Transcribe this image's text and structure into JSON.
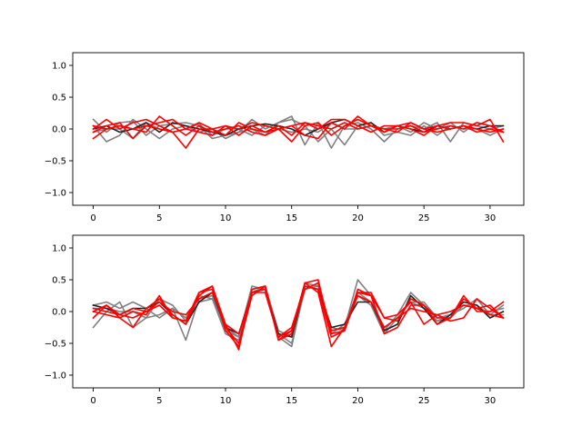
{
  "chart_data": [
    {
      "type": "line",
      "x": [
        0,
        1,
        2,
        3,
        4,
        5,
        6,
        7,
        8,
        9,
        10,
        11,
        12,
        13,
        14,
        15,
        16,
        17,
        18,
        19,
        20,
        21,
        22,
        23,
        24,
        25,
        26,
        27,
        28,
        29,
        30,
        31
      ],
      "xlim": [
        -1.55,
        32.55
      ],
      "ylim": [
        -1.2,
        1.2
      ],
      "xticks": [
        0,
        5,
        10,
        15,
        20,
        25,
        30
      ],
      "yticks": [
        -1.0,
        -0.5,
        0.0,
        0.5,
        1.0
      ],
      "ytick_labels": [
        "−1.0",
        "−0.5",
        "0.0",
        "0.5",
        "1.0"
      ],
      "grid": false,
      "series": [
        {
          "color": "#808080",
          "values": [
            0.15,
            -0.05,
            0.1,
            0.12,
            -0.1,
            0.05,
            0.08,
            0.1,
            0.05,
            -0.15,
            -0.1,
            -0.05,
            0.15,
            0.0,
            0.1,
            0.2,
            -0.25,
            0.1,
            -0.3,
            0.05,
            0.1,
            0.0,
            -0.2,
            0.0,
            0.05,
            0.0,
            0.1,
            -0.2,
            0.1,
            0.05,
            0.0,
            0.05
          ]
        },
        {
          "color": "#808080",
          "values": [
            0.05,
            -0.2,
            -0.1,
            0.15,
            0.0,
            -0.15,
            0.0,
            0.05,
            -0.05,
            0.0,
            -0.15,
            -0.05,
            0.0,
            -0.1,
            0.1,
            0.15,
            0.05,
            -0.2,
            0.0,
            -0.25,
            0.05,
            0.1,
            -0.1,
            -0.05,
            -0.1,
            0.05,
            -0.1,
            0.05,
            0.0,
            0.0,
            -0.1,
            0.0
          ]
        },
        {
          "color": "#808080",
          "values": [
            -0.05,
            0.0,
            0.0,
            -0.15,
            0.1,
            0.0,
            -0.05,
            0.0,
            0.08,
            -0.1,
            0.0,
            0.0,
            -0.1,
            0.05,
            0.0,
            -0.05,
            0.0,
            -0.05,
            0.1,
            0.0,
            0.0,
            0.05,
            0.0,
            0.05,
            -0.05,
            0.1,
            0.0,
            0.1,
            -0.05,
            0.1,
            0.05,
            -0.05
          ]
        },
        {
          "color": "#222222",
          "values": [
            0.0,
            0.05,
            -0.05,
            0.0,
            0.1,
            -0.05,
            0.1,
            0.05,
            0.0,
            -0.05,
            -0.1,
            0.0,
            0.05,
            0.08,
            0.05,
            0.0,
            -0.1,
            0.0,
            0.1,
            0.15,
            0.05,
            0.1,
            -0.05,
            0.05,
            0.0,
            -0.05,
            0.05,
            0.0,
            0.05,
            0.0,
            0.05,
            0.05
          ]
        },
        {
          "color": "#ff0000",
          "values": [
            -0.15,
            0.0,
            0.05,
            0.0,
            -0.05,
            0.2,
            0.05,
            -0.1,
            0.05,
            -0.05,
            0.0,
            0.05,
            -0.05,
            -0.1,
            0.0,
            -0.2,
            0.05,
            0.1,
            -0.1,
            0.05,
            0.15,
            0.05,
            0.0,
            0.0,
            0.05,
            -0.05,
            0.0,
            0.05,
            0.0,
            0.1,
            0.05,
            -0.05
          ]
        },
        {
          "color": "#ff0000",
          "values": [
            0.0,
            0.15,
            0.0,
            0.1,
            0.15,
            0.05,
            -0.05,
            0.0,
            0.1,
            0.0,
            0.05,
            0.0,
            0.1,
            0.05,
            0.0,
            0.05,
            0.1,
            0.0,
            0.15,
            0.15,
            0.05,
            -0.05,
            0.05,
            0.05,
            0.1,
            0.0,
            0.05,
            0.1,
            0.1,
            0.05,
            0.15,
            -0.2
          ]
        },
        {
          "color": "#ff0000",
          "values": [
            0.05,
            0.0,
            0.05,
            0.0,
            0.05,
            0.0,
            -0.05,
            -0.3,
            0.0,
            0.0,
            -0.1,
            0.1,
            0.0,
            -0.05,
            0.05,
            -0.1,
            0.1,
            0.05,
            0.0,
            0.1,
            0.0,
            0.05,
            0.0,
            -0.05,
            0.1,
            0.0,
            -0.05,
            0.0,
            0.05,
            -0.05,
            0.0,
            -0.05
          ]
        },
        {
          "color": "#ff0000",
          "values": [
            -0.05,
            0.05,
            0.1,
            -0.15,
            0.05,
            0.1,
            0.15,
            0.0,
            -0.05,
            -0.1,
            0.05,
            -0.1,
            0.05,
            -0.05,
            0.0,
            0.05,
            -0.1,
            -0.15,
            0.1,
            0.0,
            0.2,
            0.05,
            -0.05,
            0.05,
            0.0,
            -0.1,
            0.05,
            0.0,
            0.05,
            0.0,
            -0.05,
            0.0
          ]
        }
      ]
    },
    {
      "type": "line",
      "x": [
        0,
        1,
        2,
        3,
        4,
        5,
        6,
        7,
        8,
        9,
        10,
        11,
        12,
        13,
        14,
        15,
        16,
        17,
        18,
        19,
        20,
        21,
        22,
        23,
        24,
        25,
        26,
        27,
        28,
        29,
        30,
        31
      ],
      "xlim": [
        -1.55,
        32.55
      ],
      "ylim": [
        -1.2,
        1.2
      ],
      "xticks": [
        0,
        5,
        10,
        15,
        20,
        25,
        30
      ],
      "yticks": [
        -1.0,
        -0.5,
        0.0,
        0.5,
        1.0
      ],
      "ytick_labels": [
        "−1.0",
        "−0.5",
        "0.0",
        "0.5",
        "1.0"
      ],
      "grid": false,
      "series": [
        {
          "color": "#808080",
          "values": [
            0.1,
            0.15,
            0.05,
            0.15,
            0.05,
            -0.1,
            0.05,
            -0.45,
            0.2,
            0.25,
            -0.25,
            -0.4,
            0.4,
            0.35,
            -0.35,
            -0.5,
            0.35,
            0.4,
            -0.3,
            -0.25,
            0.5,
            0.25,
            -0.3,
            -0.05,
            0.3,
            0.1,
            -0.15,
            -0.1,
            0.1,
            0.1,
            -0.05,
            -0.05
          ]
        },
        {
          "color": "#808080",
          "values": [
            -0.25,
            0.0,
            0.15,
            -0.25,
            -0.1,
            0.2,
            0.1,
            -0.15,
            0.15,
            0.2,
            -0.35,
            -0.45,
            0.3,
            0.4,
            -0.4,
            -0.55,
            0.4,
            0.35,
            -0.35,
            -0.2,
            0.3,
            0.15,
            -0.25,
            -0.1,
            0.15,
            0.05,
            -0.15,
            -0.05,
            0.05,
            0.2,
            -0.05,
            0.1
          ]
        },
        {
          "color": "#808080",
          "values": [
            0.05,
            0.05,
            0.0,
            0.0,
            -0.1,
            -0.05,
            0.05,
            -0.1,
            0.25,
            0.2,
            -0.3,
            -0.4,
            0.35,
            0.4,
            -0.3,
            -0.4,
            0.45,
            0.4,
            -0.25,
            -0.3,
            0.25,
            0.1,
            -0.35,
            -0.1,
            0.15,
            0.15,
            -0.1,
            -0.05,
            0.1,
            0.05,
            0.0,
            0.05
          ]
        },
        {
          "color": "#222222",
          "values": [
            0.1,
            0.05,
            -0.05,
            0.05,
            0.05,
            0.15,
            -0.05,
            -0.2,
            0.15,
            0.3,
            -0.25,
            -0.35,
            0.3,
            0.35,
            -0.35,
            -0.4,
            0.4,
            0.35,
            -0.25,
            -0.2,
            0.15,
            0.15,
            -0.3,
            -0.2,
            0.25,
            0.05,
            -0.2,
            -0.05,
            0.15,
            0.1,
            -0.1,
            0.0
          ]
        },
        {
          "color": "#ff0000",
          "values": [
            -0.1,
            0.1,
            -0.1,
            -0.25,
            0.05,
            0.2,
            -0.05,
            -0.2,
            0.25,
            0.4,
            -0.3,
            -0.55,
            0.25,
            0.4,
            -0.45,
            -0.3,
            0.45,
            0.3,
            -0.55,
            -0.25,
            0.3,
            0.3,
            -0.1,
            -0.15,
            0.2,
            0.1,
            -0.1,
            -0.1,
            0.2,
            0.05,
            0.1,
            -0.1
          ]
        },
        {
          "color": "#ff0000",
          "values": [
            0.0,
            -0.05,
            -0.1,
            0.0,
            -0.05,
            0.25,
            -0.1,
            -0.15,
            0.3,
            0.4,
            -0.2,
            -0.6,
            0.35,
            0.4,
            -0.45,
            -0.35,
            0.45,
            0.5,
            -0.35,
            -0.3,
            0.3,
            0.25,
            -0.35,
            -0.25,
            0.1,
            0.1,
            -0.2,
            -0.1,
            0.25,
            0.0,
            0.0,
            0.15
          ]
        },
        {
          "color": "#ff0000",
          "values": [
            0.05,
            0.0,
            -0.05,
            -0.1,
            0.0,
            0.1,
            -0.1,
            -0.15,
            0.3,
            0.35,
            -0.25,
            -0.5,
            0.3,
            0.35,
            -0.4,
            -0.25,
            0.4,
            0.35,
            -0.4,
            -0.3,
            0.35,
            0.25,
            -0.1,
            -0.05,
            0.15,
            -0.2,
            -0.05,
            -0.15,
            -0.1,
            0.2,
            0.05,
            -0.1
          ]
        },
        {
          "color": "#ff0000",
          "values": [
            0.0,
            0.1,
            -0.05,
            0.05,
            0.0,
            0.15,
            0.0,
            -0.05,
            0.2,
            0.3,
            -0.2,
            -0.35,
            0.3,
            0.3,
            -0.4,
            -0.3,
            0.35,
            0.45,
            -0.3,
            -0.25,
            0.25,
            0.15,
            -0.25,
            -0.1,
            0.05,
            0.0,
            -0.05,
            0.0,
            0.1,
            0.05,
            -0.05,
            -0.1
          ]
        }
      ]
    }
  ]
}
